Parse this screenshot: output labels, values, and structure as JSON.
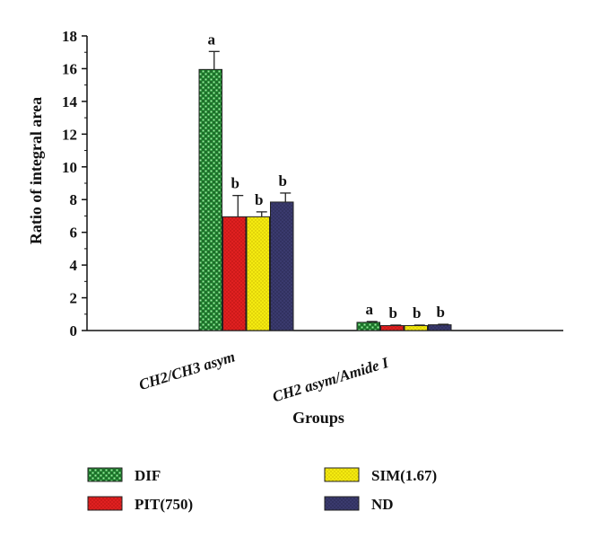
{
  "chart_data": {
    "type": "bar",
    "xlabel": "Groups",
    "ylabel": "Ratio of integral area",
    "ylim": [
      0,
      18
    ],
    "yticks": [
      0,
      2,
      4,
      6,
      8,
      10,
      12,
      14,
      16,
      18
    ],
    "categories": [
      "CH2/CH3 asym",
      "CH2 asym/Amide I"
    ],
    "series": [
      {
        "name": "DIF",
        "color": "#2e9e3f",
        "pattern": "checker",
        "values": [
          15.95,
          0.5
        ],
        "errors": [
          1.1,
          0.05
        ],
        "labels": [
          "a",
          "a"
        ]
      },
      {
        "name": "PIT(750)",
        "color": "#e02020",
        "pattern": "dots",
        "values": [
          6.95,
          0.3
        ],
        "errors": [
          1.3,
          0.03
        ],
        "labels": [
          "b",
          "b"
        ]
      },
      {
        "name": "SIM(1.67)",
        "color": "#f2e600",
        "pattern": "dots",
        "values": [
          6.95,
          0.3
        ],
        "errors": [
          0.3,
          0.03
        ],
        "labels": [
          "b",
          "b"
        ]
      },
      {
        "name": "ND",
        "color": "#3a3a6e",
        "pattern": "dots",
        "values": [
          7.85,
          0.35
        ],
        "errors": [
          0.55,
          0.03
        ],
        "labels": [
          "b",
          "b"
        ]
      }
    ],
    "grid": false,
    "legend_position": "bottom"
  }
}
